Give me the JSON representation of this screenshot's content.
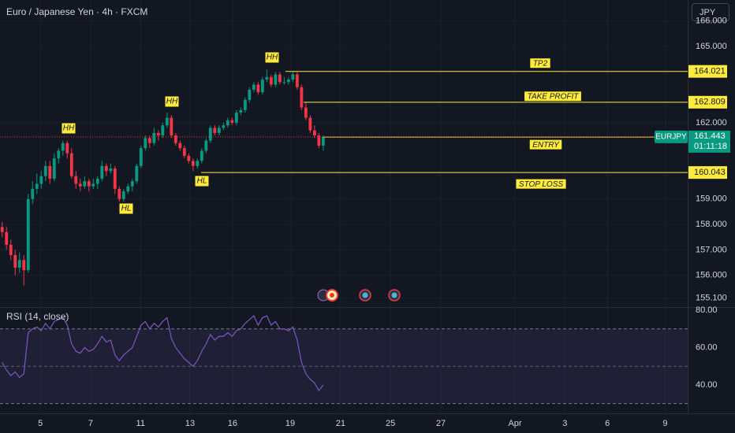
{
  "chart_data": {
    "type": "candlestick",
    "title": "Euro / Japanese Yen · 4h · FXCM",
    "currency": "JPY",
    "symbol": "EURJPY",
    "countdown": "01:11:18",
    "last_price": 161.443,
    "up_color": "#089981",
    "down_color": "#f23645",
    "level_color": "#ffeb3b",
    "grid": true,
    "ohlc": [
      [
        157.9,
        158.1,
        157.5,
        157.7
      ],
      [
        157.7,
        157.9,
        157.0,
        157.2
      ],
      [
        157.2,
        157.4,
        156.6,
        156.8
      ],
      [
        156.8,
        157.0,
        156.0,
        156.3
      ],
      [
        156.3,
        156.9,
        156.1,
        156.6
      ],
      [
        156.6,
        156.8,
        155.6,
        156.2
      ],
      [
        156.2,
        159.2,
        156.1,
        159.0
      ],
      [
        159.0,
        159.7,
        158.8,
        159.4
      ],
      [
        159.4,
        160.0,
        159.2,
        159.6
      ],
      [
        159.6,
        160.1,
        159.4,
        159.9
      ],
      [
        159.9,
        160.5,
        159.7,
        160.3
      ],
      [
        160.3,
        160.5,
        159.6,
        159.8
      ],
      [
        159.8,
        160.8,
        159.7,
        160.6
      ],
      [
        160.6,
        161.0,
        160.4,
        160.9
      ],
      [
        160.9,
        161.3,
        160.7,
        161.2
      ],
      [
        161.2,
        161.3,
        160.6,
        160.8
      ],
      [
        160.8,
        161.0,
        159.8,
        159.9
      ],
      [
        159.9,
        160.1,
        159.4,
        159.6
      ],
      [
        159.6,
        159.8,
        159.3,
        159.5
      ],
      [
        159.5,
        159.9,
        159.4,
        159.7
      ],
      [
        159.7,
        159.8,
        159.3,
        159.5
      ],
      [
        159.5,
        159.8,
        159.4,
        159.6
      ],
      [
        159.6,
        159.9,
        159.4,
        159.8
      ],
      [
        159.8,
        160.5,
        159.7,
        160.3
      ],
      [
        160.3,
        160.4,
        159.9,
        160.1
      ],
      [
        160.1,
        160.4,
        160.0,
        160.2
      ],
      [
        160.2,
        160.3,
        159.2,
        159.4
      ],
      [
        159.4,
        159.5,
        158.9,
        159.0
      ],
      [
        159.0,
        159.4,
        158.9,
        159.3
      ],
      [
        159.3,
        159.6,
        159.2,
        159.5
      ],
      [
        159.5,
        159.8,
        159.3,
        159.7
      ],
      [
        159.7,
        160.4,
        159.6,
        160.3
      ],
      [
        160.3,
        161.1,
        160.2,
        161.0
      ],
      [
        161.0,
        161.5,
        160.9,
        161.4
      ],
      [
        161.4,
        161.5,
        161.0,
        161.2
      ],
      [
        161.2,
        161.8,
        161.1,
        161.6
      ],
      [
        161.6,
        161.7,
        161.3,
        161.5
      ],
      [
        161.5,
        162.0,
        161.4,
        161.9
      ],
      [
        161.9,
        162.4,
        161.8,
        162.2
      ],
      [
        162.2,
        162.3,
        161.4,
        161.5
      ],
      [
        161.5,
        161.6,
        161.1,
        161.2
      ],
      [
        161.2,
        161.3,
        160.9,
        161.0
      ],
      [
        161.0,
        161.1,
        160.6,
        160.7
      ],
      [
        160.7,
        160.8,
        160.4,
        160.5
      ],
      [
        160.5,
        160.6,
        160.1,
        160.3
      ],
      [
        160.3,
        160.6,
        160.2,
        160.5
      ],
      [
        160.5,
        161.0,
        160.4,
        160.9
      ],
      [
        160.9,
        161.4,
        160.8,
        161.3
      ],
      [
        161.3,
        161.9,
        161.2,
        161.8
      ],
      [
        161.8,
        161.9,
        161.5,
        161.6
      ],
      [
        161.6,
        161.9,
        161.5,
        161.8
      ],
      [
        161.8,
        162.0,
        161.7,
        161.9
      ],
      [
        161.9,
        162.2,
        161.8,
        162.1
      ],
      [
        162.1,
        162.2,
        161.9,
        162.0
      ],
      [
        162.0,
        162.5,
        161.9,
        162.4
      ],
      [
        162.4,
        162.6,
        162.3,
        162.5
      ],
      [
        162.5,
        163.0,
        162.4,
        162.9
      ],
      [
        162.9,
        163.4,
        162.8,
        163.3
      ],
      [
        163.3,
        163.6,
        163.2,
        163.5
      ],
      [
        163.5,
        163.6,
        163.1,
        163.2
      ],
      [
        163.2,
        163.8,
        163.1,
        163.7
      ],
      [
        163.7,
        164.1,
        163.6,
        163.8
      ],
      [
        163.8,
        163.9,
        163.4,
        163.5
      ],
      [
        163.5,
        164.0,
        163.4,
        163.9
      ],
      [
        163.9,
        164.0,
        163.5,
        163.6
      ],
      [
        163.6,
        163.8,
        163.5,
        163.6
      ],
      [
        163.6,
        163.8,
        163.5,
        163.7
      ],
      [
        163.7,
        164.0,
        163.6,
        163.9
      ],
      [
        163.9,
        164.0,
        163.3,
        163.4
      ],
      [
        163.4,
        163.5,
        162.5,
        162.6
      ],
      [
        162.6,
        162.8,
        162.1,
        162.2
      ],
      [
        162.2,
        162.3,
        161.6,
        161.7
      ],
      [
        161.7,
        161.9,
        161.4,
        161.5
      ],
      [
        161.5,
        161.6,
        161.0,
        161.1
      ],
      [
        161.1,
        161.5,
        160.9,
        161.44
      ]
    ],
    "xlim": [
      0,
      158.5
    ],
    "xticks": [
      {
        "value": 9.3,
        "label": "5"
      },
      {
        "value": 20.9,
        "label": "7"
      },
      {
        "value": 32.4,
        "label": "11"
      },
      {
        "value": 43.8,
        "label": "13"
      },
      {
        "value": 53.6,
        "label": "16"
      },
      {
        "value": 66.9,
        "label": "19"
      },
      {
        "value": 78.5,
        "label": "21"
      },
      {
        "value": 90,
        "label": "25"
      },
      {
        "value": 101.6,
        "label": "27"
      },
      {
        "value": 118.7,
        "label": "Apr"
      },
      {
        "value": 130.2,
        "label": "3"
      },
      {
        "value": 140,
        "label": "6"
      },
      {
        "value": 153.3,
        "label": "9"
      }
    ],
    "ylim": [
      154.75,
      166.83
    ],
    "yticks": [
      {
        "value": 166,
        "label": "166.000"
      },
      {
        "value": 165,
        "label": "165.000"
      },
      {
        "value": 162,
        "label": "162.000"
      },
      {
        "value": 159,
        "label": "159.000"
      },
      {
        "value": 158,
        "label": "158.000"
      },
      {
        "value": 157,
        "label": "157.000"
      },
      {
        "value": 156,
        "label": "156.000"
      },
      {
        "value": 155.1,
        "label": "155.100"
      }
    ],
    "levels": [
      {
        "name": "TP2",
        "value": 164.021
      },
      {
        "name": "TAKE PROFIT",
        "value": 162.809
      },
      {
        "name": "ENTRY",
        "value": 161.435
      },
      {
        "name": "STOP LOSS",
        "value": 160.043
      }
    ],
    "annotations": [
      "HH",
      "HL",
      "HH",
      "HL",
      "HH"
    ],
    "indicator": {
      "type": "line",
      "title": "RSI (14, close)",
      "color": "#7e57c2",
      "values": [
        52,
        48,
        45,
        47,
        44,
        46,
        68,
        70,
        71,
        69,
        73,
        70,
        74,
        75,
        76,
        72,
        62,
        58,
        57,
        60,
        58,
        59,
        62,
        66,
        63,
        64,
        56,
        53,
        56,
        58,
        60,
        66,
        72,
        74,
        70,
        73,
        71,
        74,
        76,
        65,
        60,
        57,
        54,
        52,
        50,
        53,
        58,
        62,
        67,
        64,
        66,
        66,
        68,
        66,
        69,
        70,
        73,
        75,
        77,
        72,
        76,
        77,
        72,
        74,
        70,
        70,
        69,
        71,
        64,
        52,
        46,
        43,
        41,
        37,
        40
      ],
      "ylim": [
        24.8,
        81.7
      ],
      "yticks": [
        {
          "value": 80,
          "label": "80.00"
        },
        {
          "value": 60,
          "label": "60.00"
        },
        {
          "value": 40,
          "label": "40.00"
        }
      ],
      "bands": [
        30,
        70
      ],
      "mid": 50
    }
  }
}
